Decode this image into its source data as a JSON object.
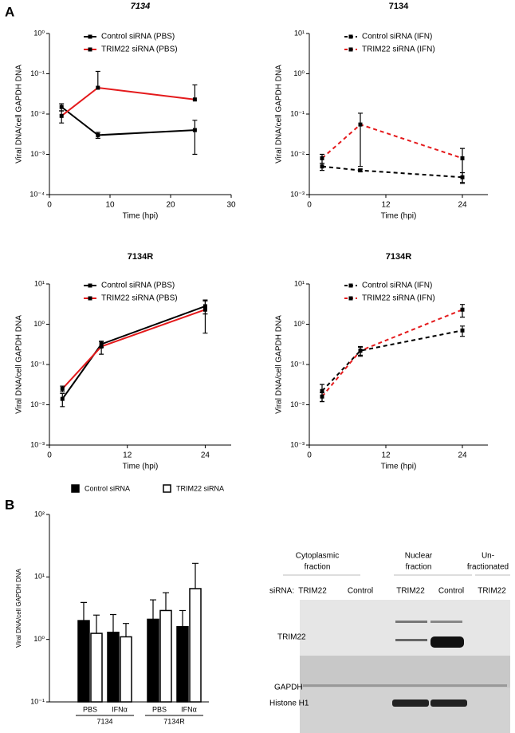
{
  "panel_a": "A",
  "panel_b": "B",
  "chart_data": [
    {
      "type": "line",
      "title": "7134",
      "title_italic": true,
      "y_label": "Viral DNA/cell GAPDH DNA",
      "x_label": "Time (hpi)",
      "log_y": true,
      "dashed": false,
      "x": [
        2,
        8,
        24
      ],
      "xlim": [
        0,
        30
      ],
      "xticks": [
        0,
        10,
        20,
        30
      ],
      "ylim": [
        0.0001,
        1
      ],
      "yticks": [
        {
          "value": 0.0001,
          "label": "10⁻⁴"
        },
        {
          "value": 0.001,
          "label": "10⁻³"
        },
        {
          "value": 0.01,
          "label": "10⁻²"
        },
        {
          "value": 0.1,
          "label": "10⁻¹"
        },
        {
          "value": 1,
          "label": "10⁰"
        }
      ],
      "series": [
        {
          "name": "Control siRNA (PBS)",
          "color": "#000000",
          "values": [
            0.015,
            0.003,
            0.004
          ],
          "errors": [
            0.003,
            0.0005,
            0.003
          ]
        },
        {
          "name": "TRIM22 siRNA (PBS)",
          "color": "#e41a1c",
          "values": [
            0.009,
            0.045,
            0.023
          ],
          "errors": [
            0.003,
            0.07,
            0.03
          ]
        }
      ]
    },
    {
      "type": "line",
      "title": "7134",
      "y_label": "Viral DNA/cell GAPDH DNA",
      "x_label": "Time (hpi)",
      "log_y": true,
      "dashed": true,
      "x": [
        2,
        8,
        24
      ],
      "xlim": [
        0,
        28
      ],
      "xticks": [
        0,
        12,
        24
      ],
      "ylim": [
        0.001,
        10
      ],
      "yticks": [
        {
          "value": 0.001,
          "label": "10⁻³"
        },
        {
          "value": 0.01,
          "label": "10⁻²"
        },
        {
          "value": 0.1,
          "label": "10⁻¹"
        },
        {
          "value": 1,
          "label": "10⁰"
        },
        {
          "value": 10,
          "label": "10¹"
        }
      ],
      "series": [
        {
          "name": "Control siRNA (IFN)",
          "color": "#000000",
          "values": [
            0.005,
            0.004,
            0.0027
          ],
          "errors": [
            0.001,
            0.0003,
            0.0008
          ]
        },
        {
          "name": "TRIM22 siRNA (IFN)",
          "color": "#e41a1c",
          "values": [
            0.008,
            0.055,
            0.008
          ],
          "errors": [
            0.002,
            0.05,
            0.006
          ]
        }
      ]
    },
    {
      "type": "line",
      "title": "7134R",
      "y_label": "Viral DNA/cell GAPDH DNA",
      "x_label": "Time (hpi)",
      "log_y": true,
      "dashed": false,
      "x": [
        2,
        8,
        24
      ],
      "xlim": [
        0,
        28
      ],
      "xticks": [
        0,
        12,
        24
      ],
      "ylim": [
        0.001,
        10
      ],
      "yticks": [
        {
          "value": 0.001,
          "label": "10⁻³"
        },
        {
          "value": 0.01,
          "label": "10⁻²"
        },
        {
          "value": 0.1,
          "label": "10⁻¹"
        },
        {
          "value": 1,
          "label": "10⁰"
        },
        {
          "value": 10,
          "label": "10¹"
        }
      ],
      "series": [
        {
          "name": "Control siRNA (PBS)",
          "color": "#000000",
          "values": [
            0.014,
            0.32,
            2.8
          ],
          "errors": [
            0.005,
            0.05,
            1
          ]
        },
        {
          "name": "TRIM22 siRNA (PBS)",
          "color": "#e41a1c",
          "values": [
            0.025,
            0.28,
            2.3
          ],
          "errors": [
            0.004,
            0.1,
            1.7
          ]
        }
      ]
    },
    {
      "type": "line",
      "title": "7134R",
      "y_label": "Viral DNA/cell GAPDH DNA",
      "x_label": "Time (hpi)",
      "log_y": true,
      "dashed": true,
      "x": [
        2,
        8,
        24
      ],
      "xlim": [
        0,
        28
      ],
      "xticks": [
        0,
        12,
        24
      ],
      "ylim": [
        0.001,
        10
      ],
      "yticks": [
        {
          "value": 0.001,
          "label": "10⁻³"
        },
        {
          "value": 0.01,
          "label": "10⁻²"
        },
        {
          "value": 0.1,
          "label": "10⁻¹"
        },
        {
          "value": 1,
          "label": "10⁰"
        },
        {
          "value": 10,
          "label": "10¹"
        }
      ],
      "series": [
        {
          "name": "Control siRNA (IFN)",
          "color": "#000000",
          "values": [
            0.022,
            0.22,
            0.7
          ],
          "errors": [
            0.01,
            0.06,
            0.2
          ]
        },
        {
          "name": "TRIM22 siRNA (IFN)",
          "color": "#e41a1c",
          "values": [
            0.016,
            0.22,
            2.3
          ],
          "errors": [
            0.004,
            0.05,
            0.8
          ]
        }
      ]
    },
    {
      "type": "bar",
      "y_label": "Viral DNA/cell GAPDH DNA",
      "log_y": true,
      "categories": [
        "PBS",
        "IFNα",
        "PBS",
        "IFNα"
      ],
      "groups": [
        "7134",
        "7134R"
      ],
      "ylim": [
        0.1,
        100
      ],
      "yticks": [
        {
          "value": 0.1,
          "label": "10⁻¹"
        },
        {
          "value": 1,
          "label": "10⁰"
        },
        {
          "value": 10,
          "label": "10¹"
        },
        {
          "value": 100,
          "label": "10²"
        }
      ],
      "series": [
        {
          "name": "Control siRNA",
          "color": "#000000",
          "values": [
            2.0,
            1.3,
            2.1,
            1.6
          ],
          "errors": [
            1.9,
            1.2,
            2.2,
            1.3
          ]
        },
        {
          "name": "TRIM22 siRNA",
          "color": "#ffffff",
          "values": [
            1.25,
            1.1,
            2.9,
            6.5
          ],
          "errors": [
            1.2,
            0.7,
            2.7,
            10
          ]
        }
      ]
    }
  ],
  "blot": {
    "fractions": [
      [
        "Cytoplasmic",
        "fraction"
      ],
      [
        "Nuclear",
        "fraction"
      ],
      [
        "Un-",
        "fractionated"
      ]
    ],
    "sirna_label": "siRNA:",
    "lanes": [
      "TRIM22",
      "Control",
      "TRIM22",
      "Control",
      "TRIM22"
    ],
    "rows": [
      "TRIM22",
      "GAPDH",
      "Histone H1"
    ]
  }
}
